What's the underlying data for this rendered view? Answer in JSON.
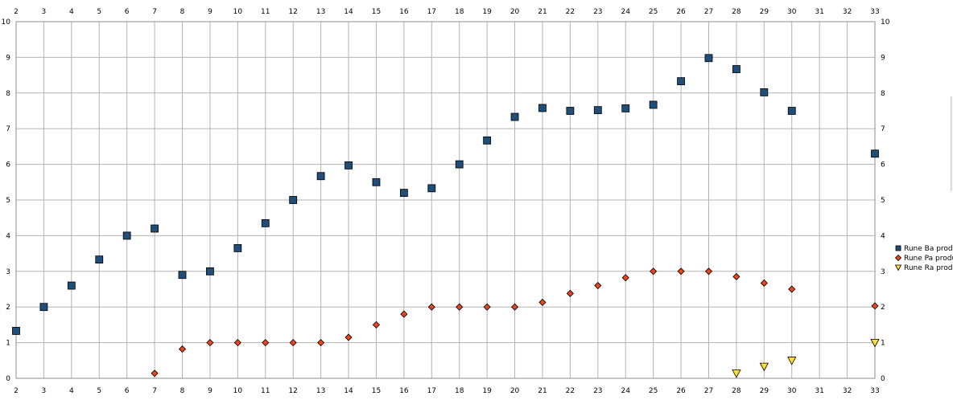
{
  "chart_data": {
    "type": "scatter",
    "title": "",
    "xlabel": "",
    "ylabel": "",
    "xlim": [
      2,
      33
    ],
    "ylim": [
      0,
      10
    ],
    "x_ticks": [
      "2",
      "3",
      "4",
      "5",
      "6",
      "7",
      "8",
      "9",
      "10",
      "11",
      "12",
      "13",
      "14",
      "15",
      "16",
      "17",
      "18",
      "19",
      "20",
      "21",
      "22",
      "23",
      "24",
      "25",
      "26",
      "27",
      "28",
      "29",
      "30",
      "31",
      "32",
      "33"
    ],
    "y_ticks": [
      "0",
      "1",
      "2",
      "3",
      "4",
      "5",
      "6",
      "7",
      "8",
      "9",
      "10"
    ],
    "grid": true,
    "legend_position": "right",
    "series": [
      {
        "name": "Rune Ba produ",
        "marker": "square",
        "color": "#1f4e79",
        "x": [
          2,
          3,
          4,
          5,
          6,
          7,
          8,
          9,
          10,
          11,
          12,
          13,
          14,
          15,
          16,
          17,
          18,
          19,
          20,
          21,
          22,
          23,
          24,
          25,
          26,
          27,
          28,
          29,
          30,
          33
        ],
        "values": [
          1.33,
          2.0,
          2.6,
          3.33,
          4.0,
          4.2,
          2.9,
          3.0,
          3.65,
          4.35,
          5.0,
          5.67,
          5.97,
          5.5,
          5.2,
          5.33,
          6.0,
          6.67,
          7.33,
          7.58,
          7.5,
          7.52,
          7.57,
          7.67,
          8.33,
          8.98,
          8.67,
          8.02,
          7.5,
          6.3
        ]
      },
      {
        "name": "Rune Pa produ",
        "marker": "diamond",
        "color": "#e8461c",
        "x": [
          7,
          8,
          9,
          10,
          11,
          12,
          13,
          14,
          15,
          16,
          17,
          18,
          19,
          20,
          21,
          22,
          23,
          24,
          25,
          26,
          27,
          28,
          29,
          30,
          33
        ],
        "values": [
          0.14,
          0.82,
          1.0,
          1.0,
          1.0,
          1.0,
          1.0,
          1.15,
          1.5,
          1.8,
          2.0,
          2.0,
          2.0,
          2.0,
          2.13,
          2.38,
          2.6,
          2.82,
          3.0,
          3.0,
          3.0,
          2.85,
          2.67,
          2.5,
          2.03
        ]
      },
      {
        "name": "Rune Ra produ",
        "marker": "triangle-down",
        "color": "#ffdd33",
        "x": [
          28,
          29,
          30,
          33
        ],
        "values": [
          0.14,
          0.33,
          0.5,
          1.0
        ]
      }
    ]
  }
}
